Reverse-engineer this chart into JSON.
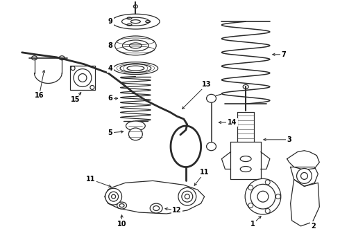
{
  "background_color": "#ffffff",
  "line_color": "#2a2a2a",
  "figsize": [
    4.9,
    3.6
  ],
  "dpi": 100
}
